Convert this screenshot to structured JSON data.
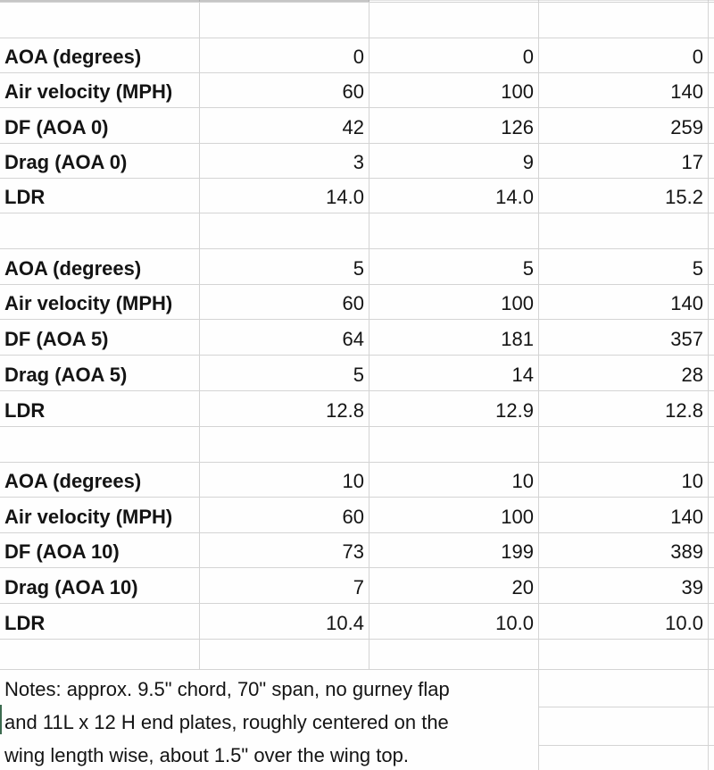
{
  "sheet": {
    "sections": [
      {
        "rows": [
          {
            "label": "AOA (degrees)",
            "values": [
              "0",
              "0",
              "0"
            ]
          },
          {
            "label": "Air velocity (MPH)",
            "values": [
              "60",
              "100",
              "140"
            ]
          },
          {
            "label": "DF (AOA 0)",
            "values": [
              "42",
              "126",
              "259"
            ]
          },
          {
            "label": "Drag (AOA 0)",
            "values": [
              "3",
              "9",
              "17"
            ]
          },
          {
            "label": "LDR",
            "values": [
              "14.0",
              "14.0",
              "15.2"
            ]
          }
        ]
      },
      {
        "rows": [
          {
            "label": "AOA (degrees)",
            "values": [
              "5",
              "5",
              "5"
            ]
          },
          {
            "label": "Air velocity (MPH)",
            "values": [
              "60",
              "100",
              "140"
            ]
          },
          {
            "label": "DF (AOA 5)",
            "values": [
              "64",
              "181",
              "357"
            ]
          },
          {
            "label": "Drag (AOA 5)",
            "values": [
              "5",
              "14",
              "28"
            ]
          },
          {
            "label": "LDR",
            "values": [
              "12.8",
              "12.9",
              "12.8"
            ]
          }
        ]
      },
      {
        "rows": [
          {
            "label": "AOA (degrees)",
            "values": [
              "10",
              "10",
              "10"
            ]
          },
          {
            "label": "Air velocity (MPH)",
            "values": [
              "60",
              "100",
              "140"
            ]
          },
          {
            "label": "DF (AOA 10)",
            "values": [
              "73",
              "199",
              "389"
            ]
          },
          {
            "label": "Drag (AOA 10)",
            "values": [
              "7",
              "20",
              "39"
            ]
          },
          {
            "label": "LDR",
            "values": [
              "10.4",
              "10.0",
              "10.0"
            ]
          }
        ]
      }
    ],
    "notes_lines": [
      "Notes: approx. 9.5\" chord, 70\" span, no gurney flap",
      "and 11L x 12 H end plates, roughly centered on the",
      "wing length wise, about 1.5\" over the wing top."
    ]
  },
  "colors": {
    "gridline": "#d4d4d4",
    "text": "#141414",
    "left_edge_mark": "#3c6b4f"
  }
}
